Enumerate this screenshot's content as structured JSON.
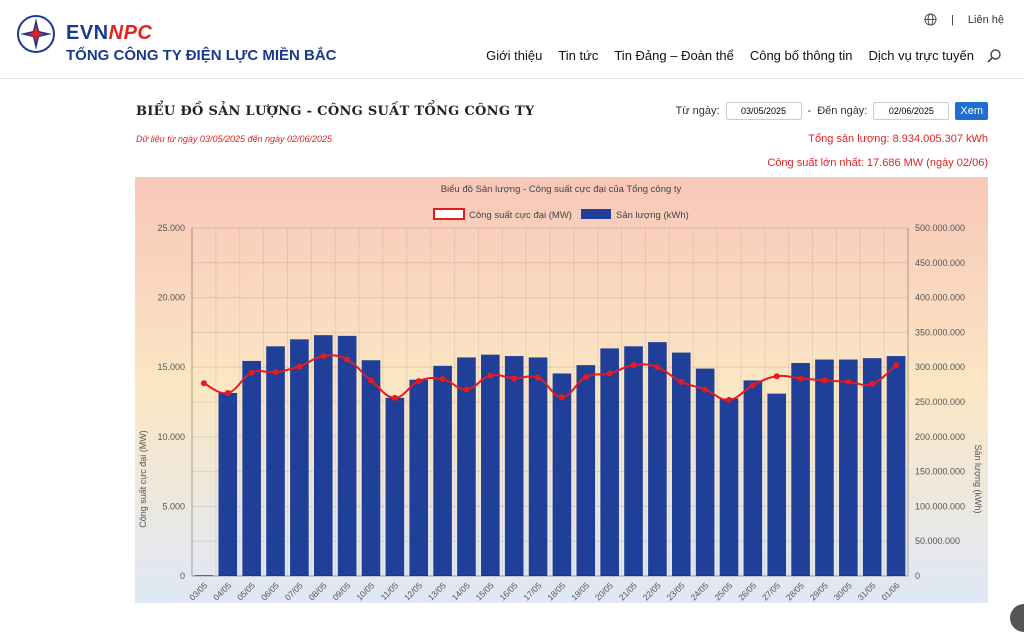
{
  "header": {
    "brand_evn": "EVN",
    "brand_npc": "NPC",
    "company": "TỔNG CÔNG TY ĐIỆN LỰC MIỀN BẮC",
    "separator": "|",
    "contact": "Liên hệ",
    "nav": [
      "Giới thiệu",
      "Tin tức",
      "Tin Đảng – Đoàn thể",
      "Công bố thông tin",
      "Dịch vụ trực tuyến"
    ],
    "icons": {
      "language": "globe-icon",
      "search": "search-icon",
      "logo": "evn-star-logo"
    }
  },
  "page": {
    "title": "BIỂU ĐỒ SẢN LƯỢNG - CÔNG SUẤT TỔNG CÔNG TY",
    "range_note": "Dữ liệu từ ngày 03/05/2025 đến ngày 02/06/2025",
    "from_label": "Từ ngày:",
    "from_value": "03/05/2025",
    "to_sep": "-",
    "to_label": "Đến ngày:",
    "to_value": "02/06/2025",
    "view_button": "Xem",
    "total_text": "Tổng sản lượng: 8.934.005.307 kWh",
    "peak_text": "Công suất lớn nhất: 17.686 MW (ngày 02/06)"
  },
  "colors": {
    "brand_blue": "#1a3a8f",
    "brand_red": "#e42321",
    "bar": "#1f3f99",
    "line": "#e8191f",
    "button": "#1e6fd0"
  },
  "chart_data": {
    "type": "bar",
    "title": "Biểu đồ Sản lượng - Công suất cực đại của Tổng công ty",
    "categories": [
      "03/05",
      "04/05",
      "05/05",
      "06/05",
      "07/05",
      "08/05",
      "09/05",
      "10/05",
      "11/05",
      "12/05",
      "13/05",
      "14/05",
      "15/05",
      "16/05",
      "17/05",
      "18/05",
      "19/05",
      "20/05",
      "21/05",
      "22/05",
      "23/05",
      "24/05",
      "25/05",
      "26/05",
      "27/05",
      "28/05",
      "29/05",
      "30/05",
      "31/05",
      "01/06"
    ],
    "ylabel": "Công suất cực đại (MW)",
    "ylabel_right": "Sản lượng (kWh)",
    "ylim": [
      0,
      25000
    ],
    "ylim_right": [
      0,
      500000000
    ],
    "yticks": [
      "0",
      "5.000",
      "10.000",
      "15.000",
      "20.000",
      "25.000"
    ],
    "yticks_right": [
      "0",
      "50.000.000",
      "100.000.000",
      "150.000.000",
      "200.000.000",
      "250.000.000",
      "300.000.000",
      "350.000.000",
      "400.000.000",
      "450.000.000",
      "500.000.000"
    ],
    "grid": true,
    "legend_position": "top",
    "series": [
      {
        "name": "Công suất cực đại (MW)",
        "type": "line",
        "axis": "left",
        "values": [
          13850,
          13150,
          14600,
          14650,
          15050,
          15800,
          15550,
          14050,
          12800,
          14000,
          14150,
          13400,
          14400,
          14200,
          14250,
          12850,
          14300,
          14550,
          15150,
          15000,
          13950,
          13400,
          12650,
          13700,
          14350,
          14200,
          14050,
          13950,
          13800,
          15150
        ]
      },
      {
        "name": "Sản lượng (kWh)",
        "type": "bar",
        "axis": "right",
        "values": [
          1000000,
          263000000,
          309000000,
          330000000,
          340000000,
          346000000,
          345000000,
          310000000,
          256000000,
          282000000,
          302000000,
          314000000,
          318000000,
          316000000,
          314000000,
          291000000,
          303000000,
          327000000,
          330000000,
          336000000,
          321000000,
          298000000,
          255000000,
          281000000,
          262000000,
          306000000,
          311000000,
          311000000,
          313000000,
          316000000
        ]
      }
    ]
  }
}
